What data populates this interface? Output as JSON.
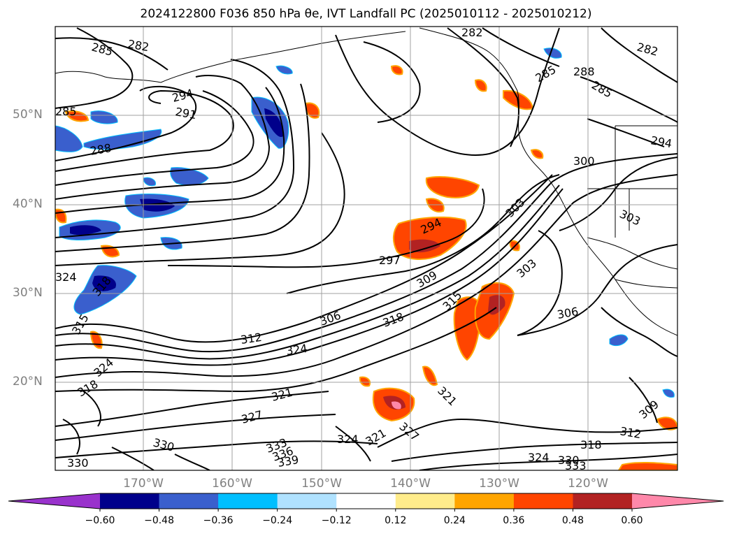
{
  "title": "2024122800 F036 850 hPa θe, IVT Landfall PC (2025010112 - 2025010212)",
  "latitude_labels": [
    "50°N",
    "40°N",
    "30°N",
    "20°N"
  ],
  "longitude_labels": [
    "170°W",
    "160°W",
    "150°W",
    "140°W",
    "130°W",
    "120°W"
  ],
  "colorbar": {
    "colors": [
      "#9932cc",
      "#00008b",
      "#3a5fcd",
      "#00bfff",
      "#b0e2ff",
      "#ffffff",
      "#ffec8b",
      "#ffa500",
      "#ff4500",
      "#b22222",
      "#ff88aa"
    ],
    "tick_labels": [
      "−0.60",
      "−0.48",
      "−0.36",
      "−0.24",
      "−0.12",
      "0.12",
      "0.24",
      "0.36",
      "0.48",
      "0.60"
    ]
  },
  "contour_labels": [
    "285",
    "282",
    "282",
    "285",
    "282",
    "288",
    "285",
    "294",
    "291",
    "288",
    "285",
    "300",
    "294",
    "303",
    "303",
    "294",
    "297",
    "309",
    "303",
    "306",
    "315",
    "318",
    "306",
    "312",
    "324",
    "321",
    "318",
    "324",
    "321",
    "327",
    "324",
    "330",
    "333",
    "336",
    "339",
    "330",
    "327",
    "321",
    "312",
    "318",
    "324",
    "330",
    "333",
    "309",
    "324",
    "318",
    "315"
  ]
}
